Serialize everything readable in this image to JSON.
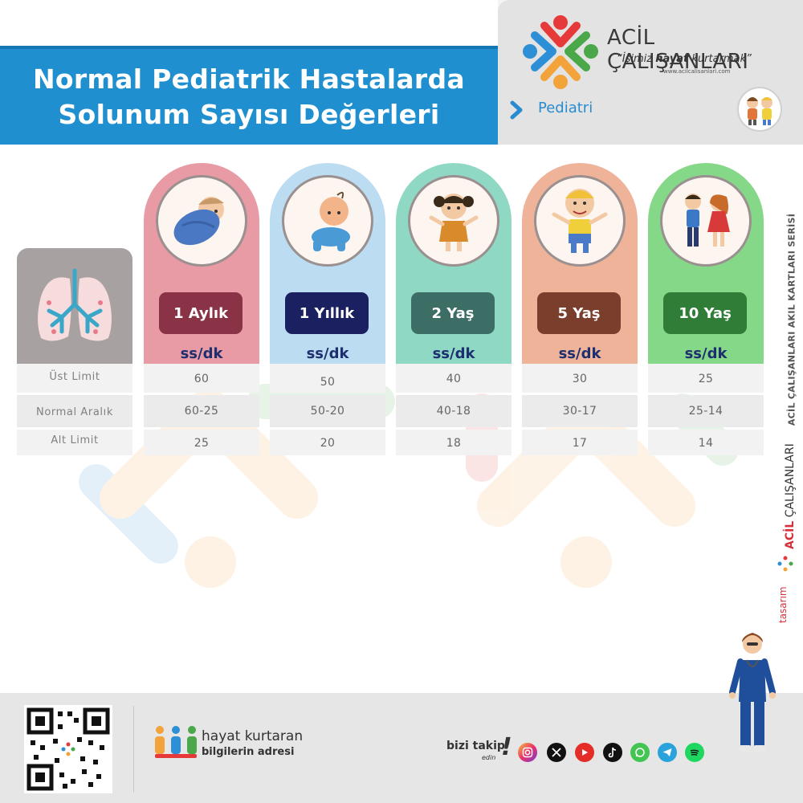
{
  "title": {
    "line1": "Normal Pediatrik Hastalarda",
    "line2": "Solunum Sayısı Değerleri"
  },
  "brand": {
    "name": "ACİL ÇALIŞANLARI",
    "slogan_open": "“İşimiz ",
    "slogan_bold": "hayat",
    "slogan_close": " kurtarmak”",
    "url": "www.acilcalisanlari.com"
  },
  "category": "Pediatri",
  "row_labels": [
    "Üst Limit",
    "Normal Aralık",
    "Alt Limit"
  ],
  "unit_label": "ss/dk",
  "columns": [
    {
      "age": "1 Aylık",
      "upper": "60",
      "range": "60-25",
      "lower": "25",
      "icon": "swaddled-baby-icon"
    },
    {
      "age": "1 Yıllık",
      "upper": "50",
      "range": "50-20",
      "lower": "20",
      "icon": "crawling-baby-icon"
    },
    {
      "age": "2 Yaş",
      "upper": "40",
      "range": "40-18",
      "lower": "18",
      "icon": "toddler-girl-icon"
    },
    {
      "age": "5 Yaş",
      "upper": "30",
      "range": "30-17",
      "lower": "17",
      "icon": "boy-icon"
    },
    {
      "age": "10 Yaş",
      "upper": "25",
      "range": "25-14",
      "lower": "14",
      "icon": "children-icon"
    }
  ],
  "side_series": "ACİL ÇALIŞANLARI AKIL KARTLARI SERİSİ",
  "side_design": {
    "prefix": "tasarım",
    "brand_bold": "ACİL",
    "brand_rest": " ÇALIŞANLARI"
  },
  "footer": {
    "hayat_line1": "hayat kurtaran",
    "hayat_line2": "bilgilerin adresi",
    "follow": "bizi takip",
    "follow_sub": "edin",
    "follow_bang": "!"
  },
  "social_icons": [
    "instagram-icon",
    "x-icon",
    "youtube-icon",
    "tiktok-icon",
    "whatsapp-icon",
    "telegram-icon",
    "spotify-icon"
  ],
  "colors": {
    "title_bg": "#1f8fd0",
    "col1": "#e89aa5",
    "col2": "#bcdcf2",
    "col3": "#8fd9c4",
    "col4": "#efb39a",
    "col5": "#86d889",
    "pill1": "#8a3346",
    "pill2": "#1b2160",
    "pill3": "#3d6e66",
    "pill4": "#7a3e2c",
    "pill5": "#2f7d36",
    "unit_text": "#1d2f6e"
  }
}
